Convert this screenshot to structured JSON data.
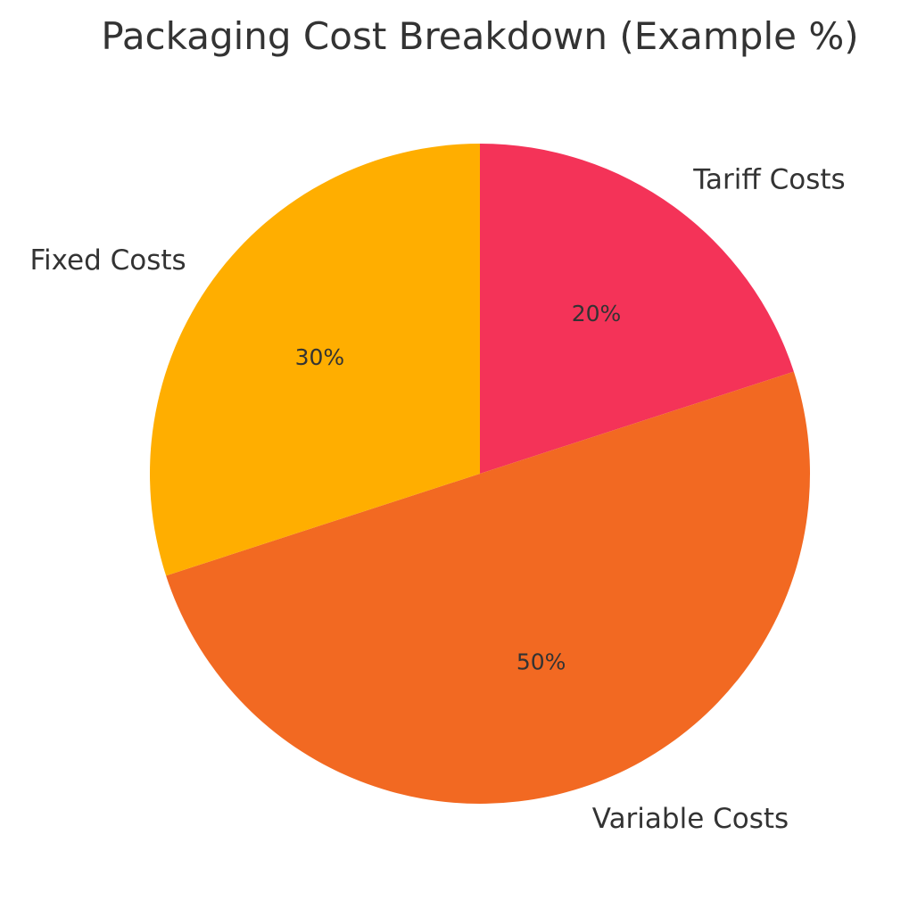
{
  "chart_data": {
    "type": "pie",
    "title": "Packaging Cost Breakdown (Example %)",
    "slices": [
      {
        "label": "Tariff Costs",
        "value": 20,
        "pct_label": "20%",
        "color": "#F43358"
      },
      {
        "label": "Variable Costs",
        "value": 50,
        "pct_label": "50%",
        "color": "#F26922"
      },
      {
        "label": "Fixed Costs",
        "value": 30,
        "pct_label": "30%",
        "color": "#FFAE00"
      }
    ],
    "start_angle_deg": 90,
    "direction": "clockwise",
    "legend": "none"
  }
}
